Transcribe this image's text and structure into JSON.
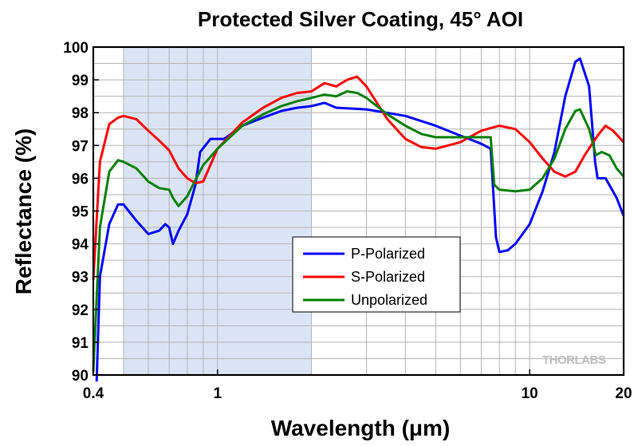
{
  "chart_data": {
    "type": "line",
    "title": "Protected Silver Coating, 45° AOI",
    "xlabel": "Wavelength (μm)",
    "ylabel": "Reflectance (%)",
    "xscale": "log",
    "xlim": [
      0.4,
      20
    ],
    "ylim": [
      90,
      100
    ],
    "xticks": [
      {
        "value": 0.4,
        "label": "0.4"
      },
      {
        "value": 1,
        "label": "1"
      },
      {
        "value": 10,
        "label": "10"
      },
      {
        "value": 20,
        "label": "20"
      }
    ],
    "yticks": [
      90,
      91,
      92,
      93,
      94,
      95,
      96,
      97,
      98,
      99,
      100
    ],
    "grid": true,
    "shaded_band": {
      "x_start": 0.5,
      "x_end": 2.0,
      "color": "#dbe4f4"
    },
    "legend": {
      "position": "center",
      "entries": [
        "P-Polarized",
        "S-Polarized",
        "Unpolarized"
      ]
    },
    "watermark": "THORLABS",
    "series": [
      {
        "name": "P-Polarized",
        "color": "#0000ff",
        "points": [
          [
            0.41,
            89.8
          ],
          [
            0.42,
            93.0
          ],
          [
            0.45,
            94.6
          ],
          [
            0.48,
            95.2
          ],
          [
            0.5,
            95.2
          ],
          [
            0.55,
            94.7
          ],
          [
            0.6,
            94.3
          ],
          [
            0.65,
            94.4
          ],
          [
            0.68,
            94.6
          ],
          [
            0.7,
            94.5
          ],
          [
            0.72,
            94.0
          ],
          [
            0.75,
            94.4
          ],
          [
            0.8,
            94.9
          ],
          [
            0.85,
            95.8
          ],
          [
            0.88,
            96.8
          ],
          [
            0.95,
            97.2
          ],
          [
            1.05,
            97.2
          ],
          [
            1.2,
            97.6
          ],
          [
            1.4,
            97.85
          ],
          [
            1.6,
            98.05
          ],
          [
            1.8,
            98.15
          ],
          [
            2.0,
            98.2
          ],
          [
            2.2,
            98.3
          ],
          [
            2.4,
            98.15
          ],
          [
            3.0,
            98.1
          ],
          [
            4.0,
            97.9
          ],
          [
            5.0,
            97.6
          ],
          [
            6.0,
            97.3
          ],
          [
            7.0,
            97.05
          ],
          [
            7.5,
            96.9
          ],
          [
            7.6,
            96.0
          ],
          [
            7.8,
            94.2
          ],
          [
            8.0,
            93.75
          ],
          [
            8.5,
            93.8
          ],
          [
            9.0,
            94.0
          ],
          [
            10.0,
            94.6
          ],
          [
            11.0,
            95.6
          ],
          [
            12.0,
            96.8
          ],
          [
            13.0,
            98.5
          ],
          [
            14.0,
            99.55
          ],
          [
            14.5,
            99.65
          ],
          [
            15.5,
            98.8
          ],
          [
            16.2,
            96.5
          ],
          [
            16.5,
            96.0
          ],
          [
            17.5,
            96.0
          ],
          [
            19.0,
            95.4
          ],
          [
            20.0,
            94.85
          ]
        ]
      },
      {
        "name": "S-Polarized",
        "color": "#ff0000",
        "points": [
          [
            0.4,
            92.9
          ],
          [
            0.42,
            96.5
          ],
          [
            0.45,
            97.65
          ],
          [
            0.48,
            97.85
          ],
          [
            0.5,
            97.9
          ],
          [
            0.55,
            97.8
          ],
          [
            0.6,
            97.45
          ],
          [
            0.65,
            97.15
          ],
          [
            0.7,
            96.85
          ],
          [
            0.75,
            96.3
          ],
          [
            0.8,
            96.0
          ],
          [
            0.85,
            95.85
          ],
          [
            0.9,
            95.9
          ],
          [
            1.0,
            96.9
          ],
          [
            1.2,
            97.7
          ],
          [
            1.4,
            98.15
          ],
          [
            1.6,
            98.45
          ],
          [
            1.8,
            98.6
          ],
          [
            2.0,
            98.65
          ],
          [
            2.2,
            98.9
          ],
          [
            2.4,
            98.8
          ],
          [
            2.6,
            99.0
          ],
          [
            2.8,
            99.1
          ],
          [
            3.0,
            98.8
          ],
          [
            3.5,
            97.8
          ],
          [
            4.0,
            97.2
          ],
          [
            4.5,
            96.95
          ],
          [
            5.0,
            96.9
          ],
          [
            6.0,
            97.1
          ],
          [
            7.0,
            97.45
          ],
          [
            8.0,
            97.6
          ],
          [
            9.0,
            97.5
          ],
          [
            10.0,
            97.1
          ],
          [
            11.0,
            96.6
          ],
          [
            12.0,
            96.2
          ],
          [
            13.0,
            96.05
          ],
          [
            14.0,
            96.2
          ],
          [
            15.0,
            96.7
          ],
          [
            16.5,
            97.3
          ],
          [
            17.5,
            97.6
          ],
          [
            18.5,
            97.45
          ],
          [
            20.0,
            97.1
          ]
        ]
      },
      {
        "name": "Unpolarized",
        "color": "#008000",
        "points": [
          [
            0.4,
            90.1
          ],
          [
            0.42,
            94.5
          ],
          [
            0.45,
            96.2
          ],
          [
            0.48,
            96.55
          ],
          [
            0.5,
            96.5
          ],
          [
            0.55,
            96.3
          ],
          [
            0.6,
            95.9
          ],
          [
            0.65,
            95.7
          ],
          [
            0.7,
            95.65
          ],
          [
            0.72,
            95.4
          ],
          [
            0.75,
            95.15
          ],
          [
            0.8,
            95.45
          ],
          [
            0.85,
            95.95
          ],
          [
            0.9,
            96.4
          ],
          [
            1.0,
            96.9
          ],
          [
            1.2,
            97.6
          ],
          [
            1.4,
            97.95
          ],
          [
            1.6,
            98.2
          ],
          [
            1.8,
            98.35
          ],
          [
            2.0,
            98.45
          ],
          [
            2.2,
            98.55
          ],
          [
            2.4,
            98.5
          ],
          [
            2.6,
            98.65
          ],
          [
            2.8,
            98.6
          ],
          [
            3.0,
            98.45
          ],
          [
            3.5,
            97.95
          ],
          [
            4.0,
            97.6
          ],
          [
            4.5,
            97.35
          ],
          [
            5.0,
            97.25
          ],
          [
            6.0,
            97.25
          ],
          [
            7.0,
            97.25
          ],
          [
            7.5,
            97.25
          ],
          [
            7.7,
            95.8
          ],
          [
            8.0,
            95.65
          ],
          [
            9.0,
            95.6
          ],
          [
            10.0,
            95.65
          ],
          [
            11.0,
            96.0
          ],
          [
            12.0,
            96.6
          ],
          [
            13.0,
            97.5
          ],
          [
            14.0,
            98.05
          ],
          [
            14.5,
            98.1
          ],
          [
            15.5,
            97.5
          ],
          [
            16.3,
            96.7
          ],
          [
            17.0,
            96.8
          ],
          [
            18.0,
            96.7
          ],
          [
            19.0,
            96.3
          ],
          [
            20.0,
            96.05
          ]
        ]
      }
    ]
  }
}
